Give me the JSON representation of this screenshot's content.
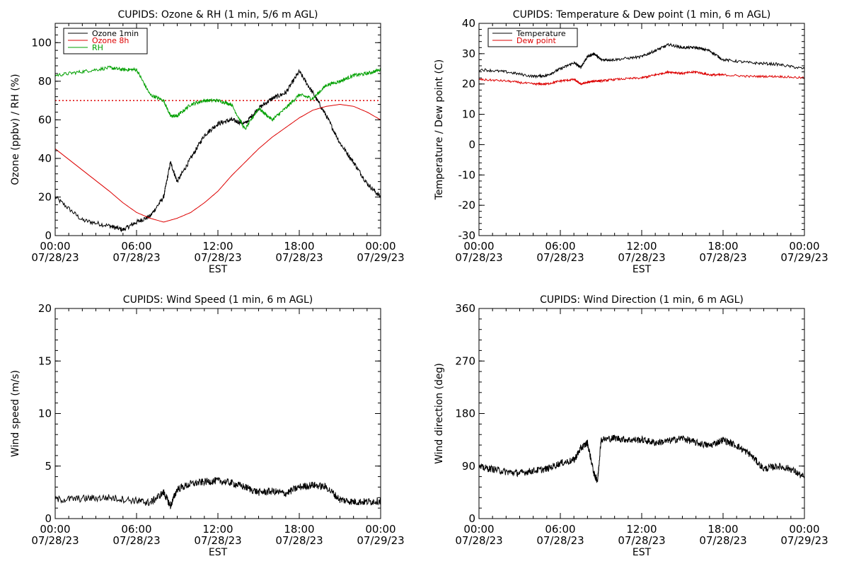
{
  "chart_data": [
    {
      "type": "line",
      "title": "CUPIDS: Ozone & RH (1 min, 5/6 m AGL)",
      "xlabel": "EST",
      "ylabel": "Ozone (ppbv) / RH (%)",
      "x_ticks": [
        {
          "time": "00:00",
          "date": "07/28/23"
        },
        {
          "time": "06:00",
          "date": "07/28/23"
        },
        {
          "time": "12:00",
          "date": "07/28/23"
        },
        {
          "time": "18:00",
          "date": "07/28/23"
        },
        {
          "time": "00:00",
          "date": "07/29/23"
        }
      ],
      "xlim": [
        "07/28/23 00:00",
        "07/29/23 00:00"
      ],
      "ylim": [
        0,
        110
      ],
      "y_ticks": [
        "0",
        "20",
        "40",
        "60",
        "80",
        "100"
      ],
      "grid": false,
      "legend": "top-left",
      "x": [
        "00:00",
        "02:00",
        "04:00",
        "05:00",
        "06:00",
        "07:00",
        "08:00",
        "08:30",
        "09:00",
        "10:00",
        "11:00",
        "12:00",
        "13:00",
        "14:00",
        "15:00",
        "16:00",
        "17:00",
        "18:00",
        "19:00",
        "20:00",
        "21:00",
        "22:00",
        "23:00",
        "24:00"
      ],
      "series": [
        {
          "name": "Ozone 1min",
          "color": "#000000",
          "values": [
            20,
            8,
            5,
            3,
            7,
            10,
            20,
            38,
            28,
            40,
            52,
            58,
            60,
            58,
            66,
            71,
            74,
            85,
            74,
            62,
            48,
            38,
            27,
            20
          ]
        },
        {
          "name": "Ozone 8h",
          "color": "#dd0000",
          "values": [
            45,
            34,
            23,
            17,
            12,
            9,
            7,
            8,
            9,
            12,
            17,
            23,
            31,
            38,
            45,
            51,
            56,
            61,
            65,
            67,
            68,
            67,
            64,
            60
          ]
        },
        {
          "name": "RH",
          "color": "#00a000",
          "values": [
            83,
            85,
            87,
            86,
            86,
            73,
            70,
            62,
            62,
            68,
            70,
            70,
            68,
            55,
            66,
            60,
            66,
            73,
            71,
            78,
            80,
            83,
            84,
            86
          ]
        }
      ],
      "reference_line": {
        "value": 70,
        "color": "#dd0000",
        "style": "dotted"
      }
    },
    {
      "type": "line",
      "title": "CUPIDS: Temperature & Dew point (1 min, 6 m AGL)",
      "xlabel": "EST",
      "ylabel": "Temperature / Dew point (C)",
      "x_ticks": [
        {
          "time": "00:00",
          "date": "07/28/23"
        },
        {
          "time": "06:00",
          "date": "07/28/23"
        },
        {
          "time": "12:00",
          "date": "07/28/23"
        },
        {
          "time": "18:00",
          "date": "07/28/23"
        },
        {
          "time": "00:00",
          "date": "07/29/23"
        }
      ],
      "xlim": [
        "07/28/23 00:00",
        "07/29/23 00:00"
      ],
      "ylim": [
        -30,
        40
      ],
      "y_ticks": [
        "-30",
        "-20",
        "-10",
        "0",
        "10",
        "20",
        "30",
        "40"
      ],
      "grid": false,
      "legend": "top-left",
      "x": [
        "00:00",
        "02:00",
        "04:00",
        "05:00",
        "06:00",
        "07:00",
        "07:30",
        "08:00",
        "08:30",
        "09:00",
        "10:00",
        "12:00",
        "13:00",
        "14:00",
        "15:00",
        "16:00",
        "17:00",
        "18:00",
        "20:00",
        "22:00",
        "24:00"
      ],
      "series": [
        {
          "name": "Temperature",
          "color": "#000000",
          "values": [
            24.8,
            24,
            22.5,
            22.8,
            25,
            27,
            25.5,
            29,
            30,
            28,
            28,
            29,
            31,
            33,
            32,
            32,
            31,
            28,
            27,
            26.5,
            25
          ]
        },
        {
          "name": "Dew point",
          "color": "#dd0000",
          "values": [
            21.5,
            21,
            20,
            20,
            21,
            21.5,
            20,
            20.5,
            21,
            21,
            21.5,
            22,
            23,
            24,
            23.5,
            24,
            23,
            23,
            22.5,
            22.5,
            22
          ]
        }
      ]
    },
    {
      "type": "line",
      "title": "CUPIDS: Wind Speed (1 min, 6 m AGL)",
      "xlabel": "EST",
      "ylabel": "Wind speed (m/s)",
      "x_ticks": [
        {
          "time": "00:00",
          "date": "07/28/23"
        },
        {
          "time": "06:00",
          "date": "07/28/23"
        },
        {
          "time": "12:00",
          "date": "07/28/23"
        },
        {
          "time": "18:00",
          "date": "07/28/23"
        },
        {
          "time": "00:00",
          "date": "07/29/23"
        }
      ],
      "xlim": [
        "07/28/23 00:00",
        "07/29/23 00:00"
      ],
      "ylim": [
        0,
        20
      ],
      "y_ticks": [
        "0",
        "5",
        "10",
        "15",
        "20"
      ],
      "grid": false,
      "x": [
        "00:00",
        "02:00",
        "04:00",
        "06:00",
        "07:00",
        "08:00",
        "08:30",
        "09:00",
        "10:00",
        "11:00",
        "12:00",
        "13:00",
        "14:00",
        "15:00",
        "16:00",
        "17:00",
        "18:00",
        "19:00",
        "20:00",
        "21:00",
        "22:00",
        "23:00",
        "24:00"
      ],
      "series": [
        {
          "name": "",
          "color": "#000000",
          "values": [
            1.8,
            1.9,
            2.0,
            1.7,
            1.5,
            2.5,
            1.2,
            2.8,
            3.3,
            3.5,
            3.6,
            3.4,
            3.0,
            2.5,
            2.6,
            2.4,
            3.0,
            3.2,
            3.0,
            1.8,
            1.6,
            1.6,
            1.7
          ]
        }
      ]
    },
    {
      "type": "line",
      "title": "CUPIDS: Wind Direction (1 min, 6 m AGL)",
      "xlabel": "EST",
      "ylabel": "Wind direction (deg)",
      "x_ticks": [
        {
          "time": "00:00",
          "date": "07/28/23"
        },
        {
          "time": "06:00",
          "date": "07/28/23"
        },
        {
          "time": "12:00",
          "date": "07/28/23"
        },
        {
          "time": "18:00",
          "date": "07/28/23"
        },
        {
          "time": "00:00",
          "date": "07/29/23"
        }
      ],
      "xlim": [
        "07/28/23 00:00",
        "07/29/23 00:00"
      ],
      "ylim": [
        0,
        360
      ],
      "y_ticks": [
        "0",
        "90",
        "180",
        "270",
        "360"
      ],
      "grid": false,
      "x": [
        "00:00",
        "01:00",
        "02:00",
        "03:00",
        "04:00",
        "05:00",
        "06:00",
        "07:00",
        "07:30",
        "08:00",
        "08:30",
        "08:45",
        "09:00",
        "10:00",
        "11:00",
        "12:00",
        "13:00",
        "14:00",
        "15:00",
        "16:00",
        "17:00",
        "18:00",
        "19:00",
        "20:00",
        "21:00",
        "22:00",
        "23:00",
        "24:00"
      ],
      "series": [
        {
          "name": "",
          "color": "#000000",
          "values": [
            88,
            85,
            80,
            78,
            82,
            85,
            95,
            100,
            120,
            130,
            75,
            65,
            135,
            138,
            135,
            135,
            130,
            133,
            138,
            130,
            125,
            135,
            125,
            110,
            85,
            90,
            85,
            70
          ]
        }
      ]
    }
  ]
}
